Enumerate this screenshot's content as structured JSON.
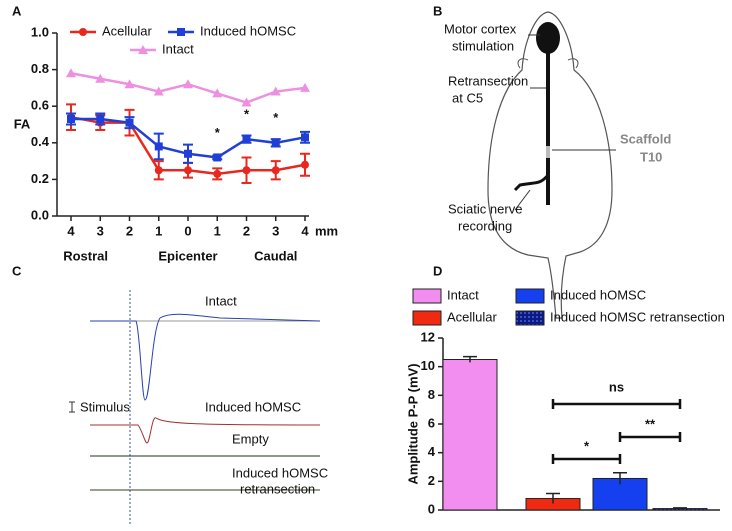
{
  "panels": [
    "A",
    "B",
    "C",
    "D"
  ],
  "chart_data": [
    {
      "type": "line",
      "ylabel": "FA",
      "categories": [
        "4",
        "3",
        "2",
        "1",
        "0",
        "1",
        "2",
        "3",
        "4"
      ],
      "x_unit": "mm",
      "x_groups": [
        "Rostral",
        "Epicenter",
        "Caudal"
      ],
      "ylim": [
        0,
        1
      ],
      "yticks": [
        {
          "value": 0,
          "label": "0.0"
        },
        {
          "value": 0.2,
          "label": "0.2"
        },
        {
          "value": 0.4,
          "label": "0.4"
        },
        {
          "value": 0.6,
          "label": "0.6"
        },
        {
          "value": 0.8,
          "label": "0.8"
        },
        {
          "value": 1,
          "label": "1.0"
        }
      ],
      "series": [
        {
          "name": "Acellular",
          "color": "#e8281e",
          "marker": "circle",
          "values": [
            0.54,
            0.51,
            0.51,
            0.25,
            0.25,
            0.23,
            0.25,
            0.25,
            0.28
          ],
          "errors": [
            0.07,
            0.04,
            0.07,
            0.05,
            0.04,
            0.03,
            0.07,
            0.05,
            0.06
          ]
        },
        {
          "name": "Induced hOMSC",
          "color": "#1f3fd6",
          "marker": "square",
          "values": [
            0.53,
            0.53,
            0.51,
            0.38,
            0.34,
            0.32,
            0.42,
            0.4,
            0.43
          ],
          "errors": [
            0.03,
            0.03,
            0.03,
            0.07,
            0.05,
            0.01,
            0.02,
            0.02,
            0.03
          ]
        },
        {
          "name": "Intact",
          "color": "#ee90e0",
          "marker": "triangle",
          "values": [
            0.78,
            0.75,
            0.72,
            0.68,
            0.72,
            0.67,
            0.62,
            0.68,
            0.7
          ]
        }
      ],
      "significance": [
        null,
        null,
        null,
        null,
        null,
        "*",
        "*",
        "*",
        null
      ]
    },
    {
      "type": "bar",
      "ylabel": "Amplitude P-P (mV)",
      "categories": [
        "Intact",
        "Acellular",
        "Induced hOMSC",
        "Induced hOMSC retransection"
      ],
      "values": [
        10.5,
        0.8,
        2.2,
        0.1
      ],
      "errors": [
        0.2,
        0.35,
        0.4,
        0.05
      ],
      "colors": [
        "#f28ef0",
        "#f02a10",
        "#1440f0",
        "#0a1a80"
      ],
      "ylim": [
        0,
        12
      ],
      "yticks": [
        0,
        2,
        4,
        6,
        8,
        10,
        12
      ],
      "comparisons": [
        "ns",
        "*",
        "**"
      ]
    }
  ],
  "diagram": {
    "labels": [
      [
        "Motor cortex",
        "stimulation"
      ],
      [
        "Retransection",
        "at C5"
      ],
      [
        "Scaffold",
        "T10"
      ],
      [
        "Sciatic nerve",
        "recording"
      ]
    ]
  },
  "traces": {
    "labels": [
      [
        "Intact"
      ],
      [
        "Stimulus"
      ],
      [
        "Induced hOMSC"
      ],
      [
        "Empty"
      ],
      [
        "Induced hOMSC",
        "retransection"
      ]
    ]
  }
}
